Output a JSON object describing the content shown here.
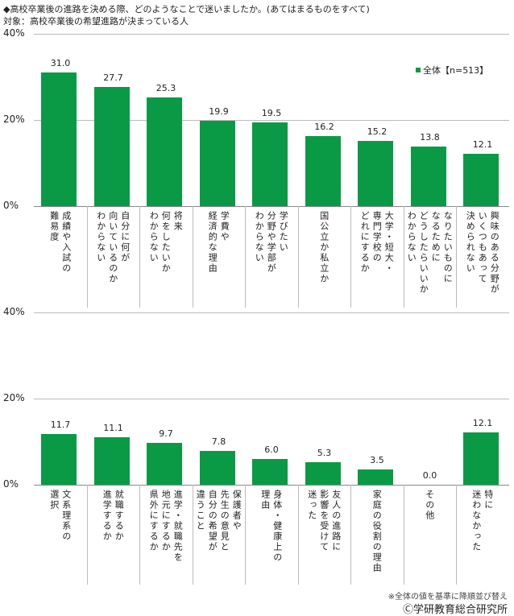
{
  "header": {
    "question": "◆高校卒業後の進路を決める際、どのようなことで迷いましたか。(あてはまるものをすべて)",
    "target": "対象：高校卒業後の希望進路が決まっている人"
  },
  "legend": "全体【n=513】",
  "note": "※全体の値を基準に降順並び替え",
  "copyright": "Ⓒ学研教育総合研究所",
  "colors": {
    "bar": "#0a9a46"
  },
  "chart_data": [
    {
      "type": "bar",
      "ylim": [
        0,
        40
      ],
      "yticks": [
        "0%",
        "20%",
        "40%"
      ],
      "series": [
        {
          "name": "全体【n=513】",
          "values": [
            31.0,
            27.7,
            25.3,
            19.9,
            19.5,
            16.2,
            15.2,
            13.8,
            12.1
          ]
        }
      ],
      "value_labels": [
        "31.0",
        "27.7",
        "25.3",
        "19.9",
        "19.5",
        "16.2",
        "15.2",
        "13.8",
        "12.1"
      ],
      "categories": [
        "成績や入試の\n難易度",
        "自分に何が\n向いているのか\nわからない",
        "将来\n何をしたいか\nわからない",
        "学費や\n経済的な理由",
        "学びたい\n分野や学部が\nわからない",
        "国公立か私立か",
        "大学・短大・\n専門学校の\nどれにするか",
        "なりたいものに\nなるために\nどうしたらいいか\nわからない",
        "興味のある分野が\nいくつもあって\n決められない"
      ]
    },
    {
      "type": "bar",
      "ylim": [
        0,
        40
      ],
      "yticks": [
        "0%",
        "20%",
        "40%"
      ],
      "series": [
        {
          "name": "全体【n=513】",
          "values": [
            11.7,
            11.1,
            9.7,
            7.8,
            6.0,
            5.3,
            3.5,
            0.0,
            12.1
          ]
        }
      ],
      "value_labels": [
        "11.7",
        "11.1",
        "9.7",
        "7.8",
        "6.0",
        "5.3",
        "3.5",
        "0.0",
        "12.1"
      ],
      "categories": [
        "文系理系の\n選択",
        "就職するか\n進学するか",
        "進学・就職先を\n地元にするか\n県外にするか",
        "保護者や\n先生の意見と\n自分の希望が\n違うこと",
        "身体・健康上の\n理由",
        "友人の進路に\n影響を受けて\n迷った",
        "家庭の役割の理由",
        "その他",
        "特に\n迷わなかった"
      ]
    }
  ]
}
